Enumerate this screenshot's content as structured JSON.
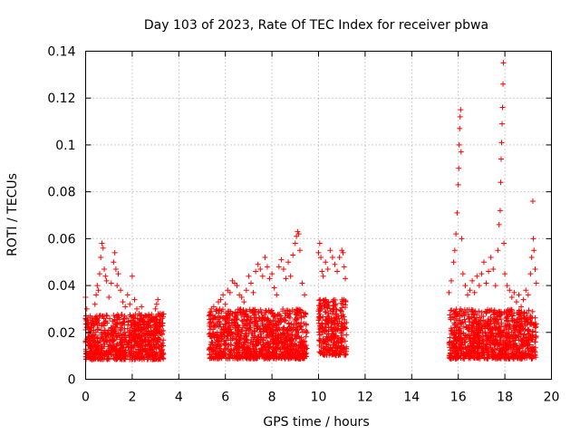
{
  "chart_data": {
    "type": "scatter",
    "title": "Day 103 of 2023, Rate Of TEC Index for receiver pbwa",
    "xlabel": "GPS time / hours",
    "ylabel": "ROTI / TECUs",
    "xlim": [
      0,
      20
    ],
    "ylim": [
      0,
      0.14
    ],
    "x_ticks": [
      0,
      2,
      4,
      6,
      8,
      10,
      12,
      14,
      16,
      18,
      20
    ],
    "x_tick_labels": [
      "0",
      "2",
      "4",
      "6",
      "8",
      "10",
      "12",
      "14",
      "16",
      "18",
      "20"
    ],
    "y_ticks": [
      0,
      0.02,
      0.04,
      0.06,
      0.08,
      0.1,
      0.12,
      0.14
    ],
    "y_tick_labels": [
      "0",
      "0.02",
      "0.04",
      "0.06",
      "0.08",
      "0.1",
      "0.12",
      "0.14"
    ],
    "grid": true,
    "marker": "+",
    "color": "#ff0000",
    "series": [
      {
        "values": [
          [
            0.0,
            0.026
          ],
          [
            0.0,
            0.035
          ],
          [
            0.05,
            0.03
          ],
          [
            0.1,
            0.022
          ],
          [
            0.15,
            0.018
          ],
          [
            0.2,
            0.027
          ],
          [
            0.3,
            0.024
          ],
          [
            0.4,
            0.032
          ],
          [
            0.45,
            0.036
          ],
          [
            0.5,
            0.04
          ],
          [
            0.55,
            0.038
          ],
          [
            0.6,
            0.045
          ],
          [
            0.65,
            0.052
          ],
          [
            0.7,
            0.058
          ],
          [
            0.75,
            0.056
          ],
          [
            0.8,
            0.047
          ],
          [
            0.85,
            0.044
          ],
          [
            0.9,
            0.042
          ],
          [
            1.0,
            0.035
          ],
          [
            1.1,
            0.041
          ],
          [
            1.2,
            0.05
          ],
          [
            1.25,
            0.054
          ],
          [
            1.3,
            0.047
          ],
          [
            1.35,
            0.04
          ],
          [
            1.4,
            0.045
          ],
          [
            1.5,
            0.038
          ],
          [
            1.6,
            0.033
          ],
          [
            1.7,
            0.031
          ],
          [
            1.8,
            0.036
          ],
          [
            1.9,
            0.032
          ],
          [
            2.0,
            0.044
          ],
          [
            2.1,
            0.034
          ],
          [
            2.2,
            0.03
          ],
          [
            2.3,
            0.028
          ],
          [
            2.4,
            0.031
          ],
          [
            2.5,
            0.025
          ],
          [
            2.6,
            0.027
          ],
          [
            2.7,
            0.024
          ],
          [
            2.8,
            0.022
          ],
          [
            2.9,
            0.026
          ],
          [
            3.0,
            0.03
          ],
          [
            3.05,
            0.032
          ],
          [
            3.1,
            0.034
          ],
          [
            3.2,
            0.028
          ],
          [
            3.3,
            0.026
          ],
          [
            5.3,
            0.027
          ],
          [
            5.4,
            0.03
          ],
          [
            5.5,
            0.031
          ],
          [
            5.6,
            0.029
          ],
          [
            5.7,
            0.033
          ],
          [
            5.8,
            0.034
          ],
          [
            5.9,
            0.036
          ],
          [
            6.0,
            0.032
          ],
          [
            6.1,
            0.038
          ],
          [
            6.2,
            0.037
          ],
          [
            6.3,
            0.042
          ],
          [
            6.4,
            0.041
          ],
          [
            6.5,
            0.04
          ],
          [
            6.6,
            0.036
          ],
          [
            6.7,
            0.035
          ],
          [
            6.8,
            0.033
          ],
          [
            6.9,
            0.038
          ],
          [
            7.0,
            0.044
          ],
          [
            7.1,
            0.041
          ],
          [
            7.2,
            0.037
          ],
          [
            7.3,
            0.046
          ],
          [
            7.4,
            0.049
          ],
          [
            7.5,
            0.047
          ],
          [
            7.6,
            0.044
          ],
          [
            7.7,
            0.052
          ],
          [
            7.8,
            0.048
          ],
          [
            7.9,
            0.043
          ],
          [
            8.0,
            0.045
          ],
          [
            8.1,
            0.039
          ],
          [
            8.2,
            0.036
          ],
          [
            8.3,
            0.048
          ],
          [
            8.4,
            0.051
          ],
          [
            8.5,
            0.047
          ],
          [
            8.6,
            0.043
          ],
          [
            8.7,
            0.05
          ],
          [
            8.8,
            0.044
          ],
          [
            8.9,
            0.053
          ],
          [
            9.0,
            0.058
          ],
          [
            9.05,
            0.061
          ],
          [
            9.1,
            0.063
          ],
          [
            9.15,
            0.062
          ],
          [
            9.2,
            0.055
          ],
          [
            9.3,
            0.041
          ],
          [
            9.4,
            0.036
          ],
          [
            10.0,
            0.054
          ],
          [
            10.05,
            0.058
          ],
          [
            10.1,
            0.052
          ],
          [
            10.15,
            0.046
          ],
          [
            10.2,
            0.044
          ],
          [
            10.3,
            0.05
          ],
          [
            10.4,
            0.047
          ],
          [
            10.5,
            0.055
          ],
          [
            10.6,
            0.052
          ],
          [
            10.7,
            0.049
          ],
          [
            10.8,
            0.046
          ],
          [
            10.9,
            0.052
          ],
          [
            11.0,
            0.055
          ],
          [
            11.05,
            0.054
          ],
          [
            11.1,
            0.048
          ],
          [
            11.15,
            0.043
          ],
          [
            15.6,
            0.037
          ],
          [
            15.7,
            0.042
          ],
          [
            15.8,
            0.05
          ],
          [
            15.85,
            0.055
          ],
          [
            15.9,
            0.062
          ],
          [
            15.95,
            0.071
          ],
          [
            16.0,
            0.083
          ],
          [
            16.02,
            0.09
          ],
          [
            16.04,
            0.1
          ],
          [
            16.06,
            0.107
          ],
          [
            16.08,
            0.112
          ],
          [
            16.1,
            0.115
          ],
          [
            16.12,
            0.097
          ],
          [
            16.15,
            0.06
          ],
          [
            16.2,
            0.045
          ],
          [
            16.3,
            0.04
          ],
          [
            16.4,
            0.036
          ],
          [
            16.5,
            0.038
          ],
          [
            16.6,
            0.042
          ],
          [
            16.7,
            0.037
          ],
          [
            16.8,
            0.044
          ],
          [
            16.9,
            0.04
          ],
          [
            17.0,
            0.045
          ],
          [
            17.1,
            0.05
          ],
          [
            17.2,
            0.041
          ],
          [
            17.3,
            0.046
          ],
          [
            17.4,
            0.052
          ],
          [
            17.5,
            0.047
          ],
          [
            17.6,
            0.04
          ],
          [
            17.7,
            0.055
          ],
          [
            17.75,
            0.066
          ],
          [
            17.8,
            0.072
          ],
          [
            17.82,
            0.084
          ],
          [
            17.84,
            0.094
          ],
          [
            17.86,
            0.101
          ],
          [
            17.88,
            0.109
          ],
          [
            17.9,
            0.116
          ],
          [
            17.92,
            0.126
          ],
          [
            17.94,
            0.135
          ],
          [
            17.96,
            0.058
          ],
          [
            18.0,
            0.045
          ],
          [
            18.1,
            0.04
          ],
          [
            18.2,
            0.038
          ],
          [
            18.3,
            0.035
          ],
          [
            18.4,
            0.037
          ],
          [
            18.5,
            0.033
          ],
          [
            18.6,
            0.036
          ],
          [
            18.7,
            0.031
          ],
          [
            18.8,
            0.034
          ],
          [
            18.9,
            0.038
          ],
          [
            19.0,
            0.036
          ],
          [
            19.1,
            0.045
          ],
          [
            19.15,
            0.052
          ],
          [
            19.2,
            0.076
          ],
          [
            19.22,
            0.06
          ],
          [
            19.25,
            0.055
          ],
          [
            19.3,
            0.047
          ],
          [
            19.35,
            0.041
          ]
        ],
        "bands": [
          {
            "x": [
              0,
              3.35
            ],
            "y": [
              0.005,
              0.028
            ]
          },
          {
            "x": [
              5.3,
              9.5
            ],
            "y": [
              0.005,
              0.03
            ]
          },
          {
            "x": [
              10.0,
              11.2
            ],
            "y": [
              0.006,
              0.034
            ]
          },
          {
            "x": [
              15.6,
              19.35
            ],
            "y": [
              0.005,
              0.03
            ]
          }
        ]
      }
    ]
  }
}
